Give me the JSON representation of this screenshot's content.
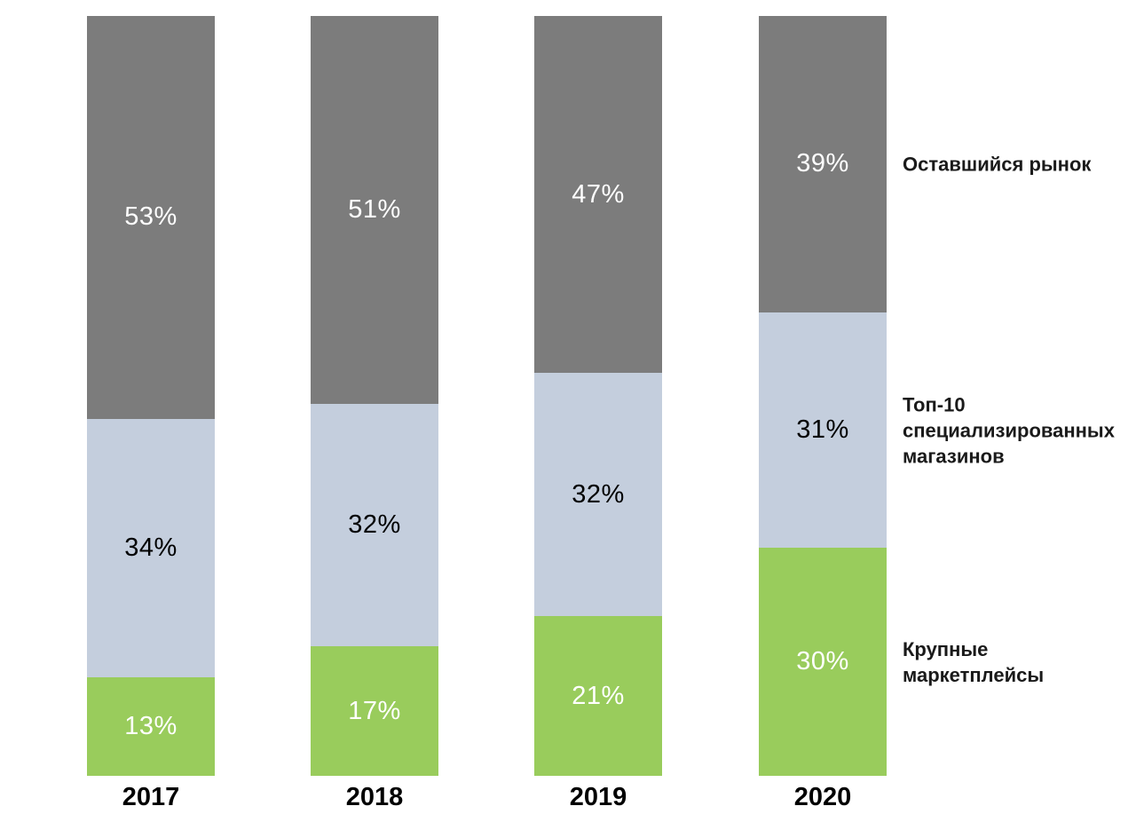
{
  "chart_data": {
    "type": "bar",
    "stacked": true,
    "orientation": "vertical",
    "title": "",
    "xlabel": "",
    "ylabel": "",
    "ylim": [
      0,
      100
    ],
    "grid": false,
    "legend_position": "right",
    "value_suffix": "%",
    "categories": [
      "2017",
      "2018",
      "2019",
      "2020"
    ],
    "series": [
      {
        "name": "Оставшийся рынок",
        "values": [
          53,
          51,
          47,
          39
        ],
        "color": "#7C7C7C",
        "label_color": "#FFFFFF"
      },
      {
        "name": "Топ-10 специализированных магазинов",
        "values": [
          34,
          32,
          32,
          31
        ],
        "color": "#C4CEDD",
        "label_color": "#000000"
      },
      {
        "name": "Крупные маркетплейсы",
        "values": [
          13,
          17,
          21,
          30
        ],
        "color": "#99CC5C",
        "label_color": "#FFFFFF"
      }
    ]
  },
  "colors": {
    "background": "#FFFFFF",
    "axis_label_text": "#000000",
    "legend_text": "#1A1A1A"
  }
}
